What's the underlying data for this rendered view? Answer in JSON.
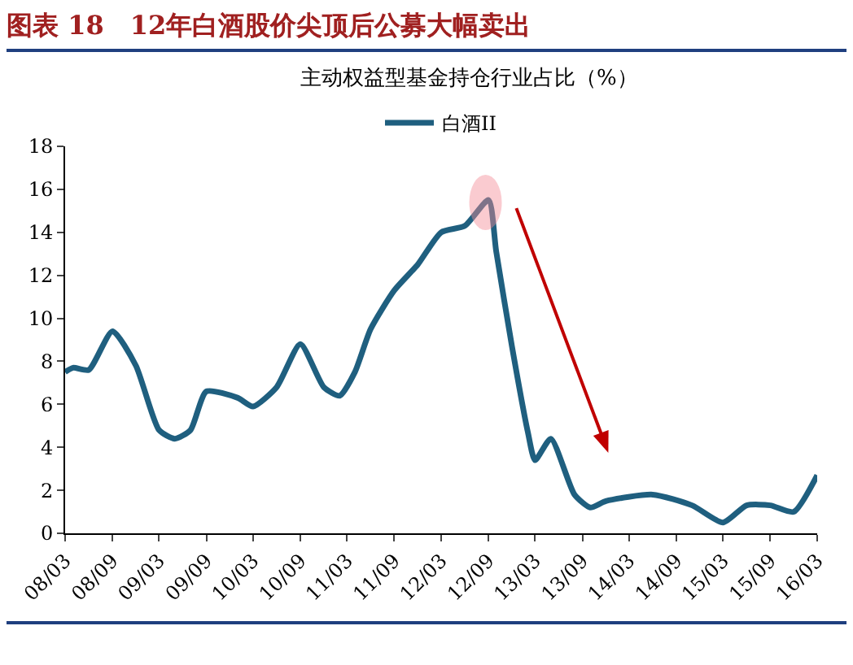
{
  "chart_data": {
    "type": "line",
    "title": "图表 18　12年白酒股价尖顶后公募大幅卖出",
    "subtitle": "主动权益型基金持仓行业占比（%）",
    "x": [
      "2008-03",
      "2008-04",
      "2008-06",
      "2008-09",
      "2008-12",
      "2009-03",
      "2009-05",
      "2009-07",
      "2009-09",
      "2010-01",
      "2010-03",
      "2010-06",
      "2010-09",
      "2010-12",
      "2011-02",
      "2011-04",
      "2011-06",
      "2011-09",
      "2011-12",
      "2012-03",
      "2012-06",
      "2012-09",
      "2012-10",
      "2012-12",
      "2013-02",
      "2013-03",
      "2013-05",
      "2013-08",
      "2013-10",
      "2013-12",
      "2014-06",
      "2014-11",
      "2015-03",
      "2015-06",
      "2015-09",
      "2015-12",
      "2016-03"
    ],
    "series": [
      {
        "name": "白酒II",
        "color": "#1f5f7f",
        "values": [
          7.5,
          7.7,
          7.6,
          9.4,
          7.8,
          4.8,
          4.4,
          4.8,
          6.6,
          6.3,
          5.9,
          6.8,
          8.8,
          6.8,
          6.4,
          7.5,
          9.5,
          11.3,
          12.5,
          14.0,
          14.3,
          15.5,
          13.1,
          8.7,
          4.7,
          3.4,
          4.4,
          1.8,
          1.2,
          1.5,
          1.8,
          1.3,
          0.5,
          1.3,
          1.3,
          1.0,
          2.7
        ]
      }
    ],
    "xlim": [
      "2008-03",
      "2016-03"
    ],
    "xticks": [
      {
        "value": "2008-03",
        "label": "08/03"
      },
      {
        "value": "2008-09",
        "label": "08/09"
      },
      {
        "value": "2009-03",
        "label": "09/03"
      },
      {
        "value": "2009-09",
        "label": "09/09"
      },
      {
        "value": "2010-03",
        "label": "10/03"
      },
      {
        "value": "2010-09",
        "label": "10/09"
      },
      {
        "value": "2011-03",
        "label": "11/03"
      },
      {
        "value": "2011-09",
        "label": "11/09"
      },
      {
        "value": "2012-03",
        "label": "12/03"
      },
      {
        "value": "2012-09",
        "label": "12/09"
      },
      {
        "value": "2013-03",
        "label": "13/03"
      },
      {
        "value": "2013-09",
        "label": "13/09"
      },
      {
        "value": "2014-03",
        "label": "14/03"
      },
      {
        "value": "2014-09",
        "label": "14/09"
      },
      {
        "value": "2015-03",
        "label": "15/03"
      },
      {
        "value": "2015-09",
        "label": "15/09"
      },
      {
        "value": "2016-03",
        "label": "16/03"
      }
    ],
    "ylim": [
      0,
      18
    ],
    "yticks": [
      0,
      2,
      4,
      6,
      8,
      10,
      12,
      14,
      16,
      18
    ],
    "grid": false,
    "legend": "top",
    "marker": "none",
    "line_style": "solid"
  }
}
